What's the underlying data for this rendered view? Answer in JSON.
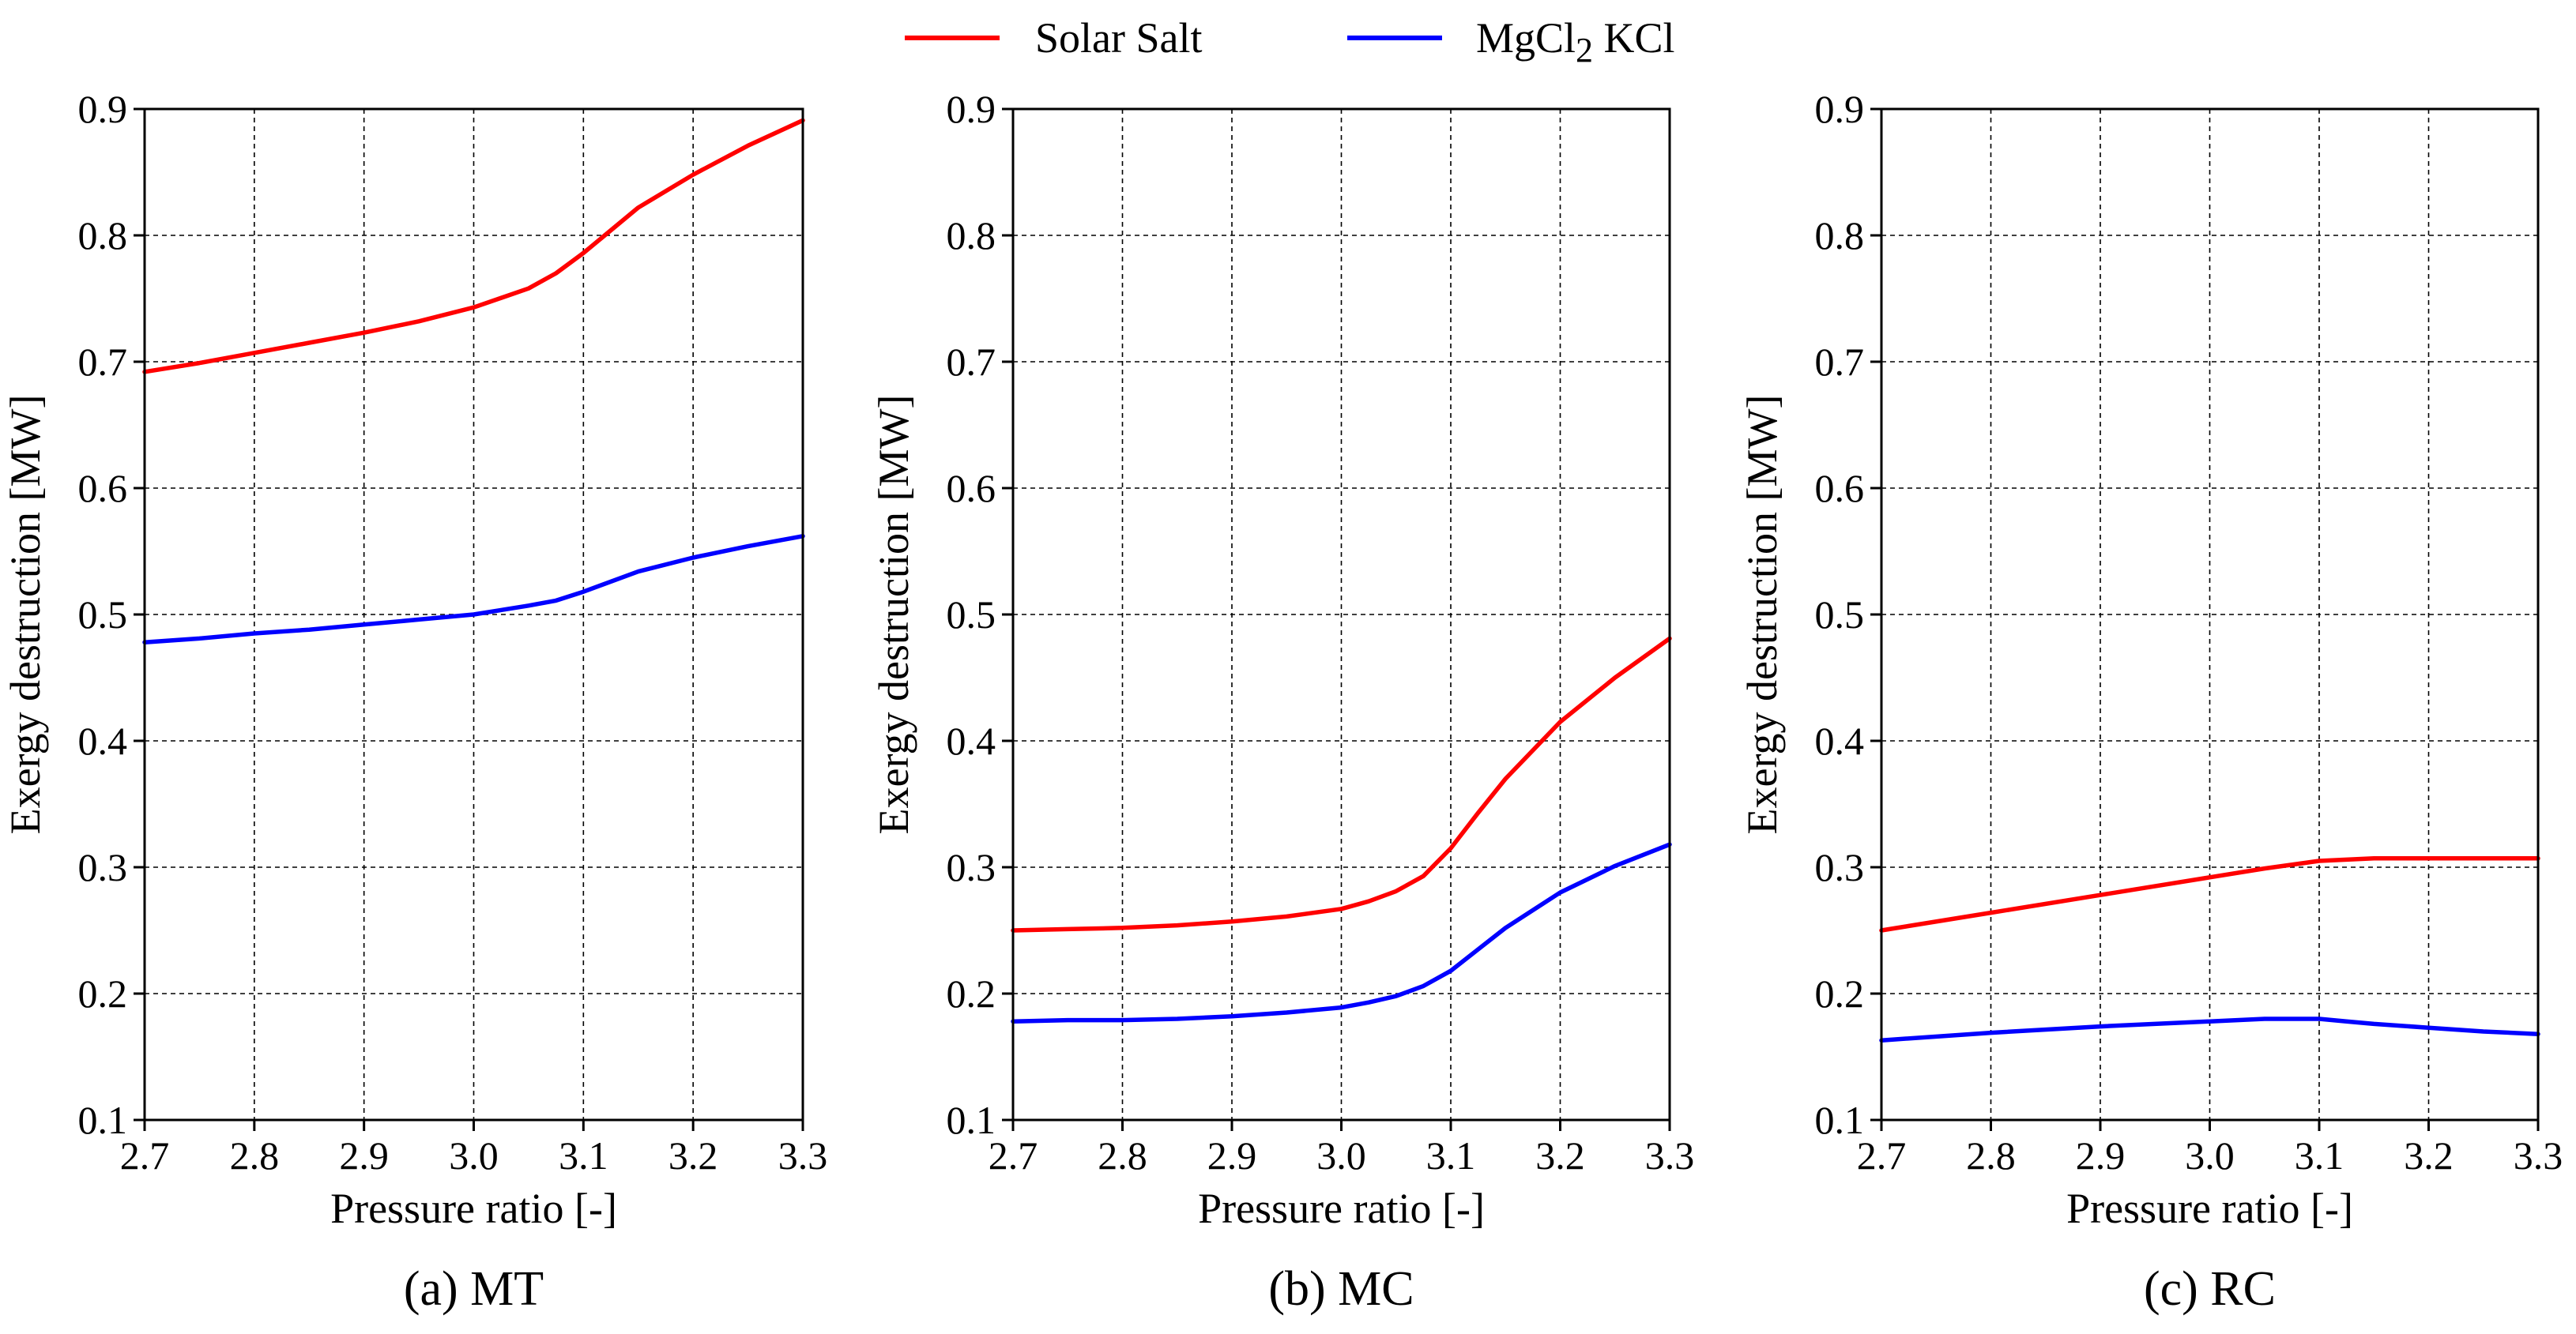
{
  "legend": {
    "entries": [
      {
        "name": "Solar Salt",
        "color": "#ff0000"
      },
      {
        "name": "MgCl₂ KCl",
        "color": "#0000ff"
      }
    ]
  },
  "chart_data": [
    {
      "type": "line",
      "caption": "(a) MT",
      "xlabel": "Pressure ratio [-]",
      "ylabel": "Exergy destruction [MW]",
      "xlim": [
        2.7,
        3.3
      ],
      "ylim": [
        0.1,
        0.9
      ],
      "xticks": [
        "2.7",
        "2.8",
        "2.9",
        "3.0",
        "3.1",
        "3.2",
        "3.3"
      ],
      "yticks": [
        "0.1",
        "0.2",
        "0.3",
        "0.4",
        "0.5",
        "0.6",
        "0.7",
        "0.8",
        "0.9"
      ],
      "grid": true,
      "x": [
        2.7,
        2.75,
        2.8,
        2.85,
        2.9,
        2.95,
        3.0,
        3.05,
        3.075,
        3.1,
        3.15,
        3.2,
        3.25,
        3.3
      ],
      "series": [
        {
          "name": "Solar Salt",
          "color": "#ff0000",
          "values": [
            0.692,
            0.699,
            0.707,
            0.715,
            0.723,
            0.732,
            0.743,
            0.758,
            0.77,
            0.786,
            0.822,
            0.848,
            0.871,
            0.891
          ]
        },
        {
          "name": "MgCl₂ KCl",
          "color": "#0000ff",
          "values": [
            0.478,
            0.481,
            0.485,
            0.488,
            0.492,
            0.496,
            0.5,
            0.507,
            0.511,
            0.518,
            0.534,
            0.545,
            0.554,
            0.562
          ]
        }
      ]
    },
    {
      "type": "line",
      "caption": "(b) MC",
      "xlabel": "Pressure ratio [-]",
      "ylabel": "Exergy destruction [MW]",
      "xlim": [
        2.7,
        3.3
      ],
      "ylim": [
        0.1,
        0.9
      ],
      "xticks": [
        "2.7",
        "2.8",
        "2.9",
        "3.0",
        "3.1",
        "3.2",
        "3.3"
      ],
      "yticks": [
        "0.1",
        "0.2",
        "0.3",
        "0.4",
        "0.5",
        "0.6",
        "0.7",
        "0.8",
        "0.9"
      ],
      "grid": true,
      "x": [
        2.7,
        2.75,
        2.8,
        2.85,
        2.9,
        2.95,
        3.0,
        3.025,
        3.05,
        3.075,
        3.1,
        3.125,
        3.15,
        3.2,
        3.25,
        3.3
      ],
      "series": [
        {
          "name": "Solar Salt",
          "color": "#ff0000",
          "values": [
            0.25,
            0.251,
            0.252,
            0.254,
            0.257,
            0.261,
            0.267,
            0.273,
            0.281,
            0.293,
            0.315,
            0.343,
            0.37,
            0.415,
            0.45,
            0.481
          ]
        },
        {
          "name": "MgCl₂ KCl",
          "color": "#0000ff",
          "values": [
            0.178,
            0.179,
            0.179,
            0.18,
            0.182,
            0.185,
            0.189,
            0.193,
            0.198,
            0.206,
            0.218,
            0.235,
            0.252,
            0.28,
            0.301,
            0.318
          ]
        }
      ]
    },
    {
      "type": "line",
      "caption": "(c) RC",
      "xlabel": "Pressure ratio [-]",
      "ylabel": "Exergy destruction [MW]",
      "xlim": [
        2.7,
        3.3
      ],
      "ylim": [
        0.1,
        0.9
      ],
      "xticks": [
        "2.7",
        "2.8",
        "2.9",
        "3.0",
        "3.1",
        "3.2",
        "3.3"
      ],
      "yticks": [
        "0.1",
        "0.2",
        "0.3",
        "0.4",
        "0.5",
        "0.6",
        "0.7",
        "0.8",
        "0.9"
      ],
      "grid": true,
      "x": [
        2.7,
        2.8,
        2.9,
        3.0,
        3.05,
        3.1,
        3.125,
        3.15,
        3.2,
        3.25,
        3.3
      ],
      "series": [
        {
          "name": "Solar Salt",
          "color": "#ff0000",
          "values": [
            0.25,
            0.264,
            0.278,
            0.292,
            0.299,
            0.305,
            0.306,
            0.307,
            0.307,
            0.307,
            0.307
          ]
        },
        {
          "name": "MgCl₂ KCl",
          "color": "#0000ff",
          "values": [
            0.163,
            0.169,
            0.174,
            0.178,
            0.18,
            0.18,
            0.178,
            0.176,
            0.173,
            0.17,
            0.168
          ]
        }
      ]
    }
  ]
}
